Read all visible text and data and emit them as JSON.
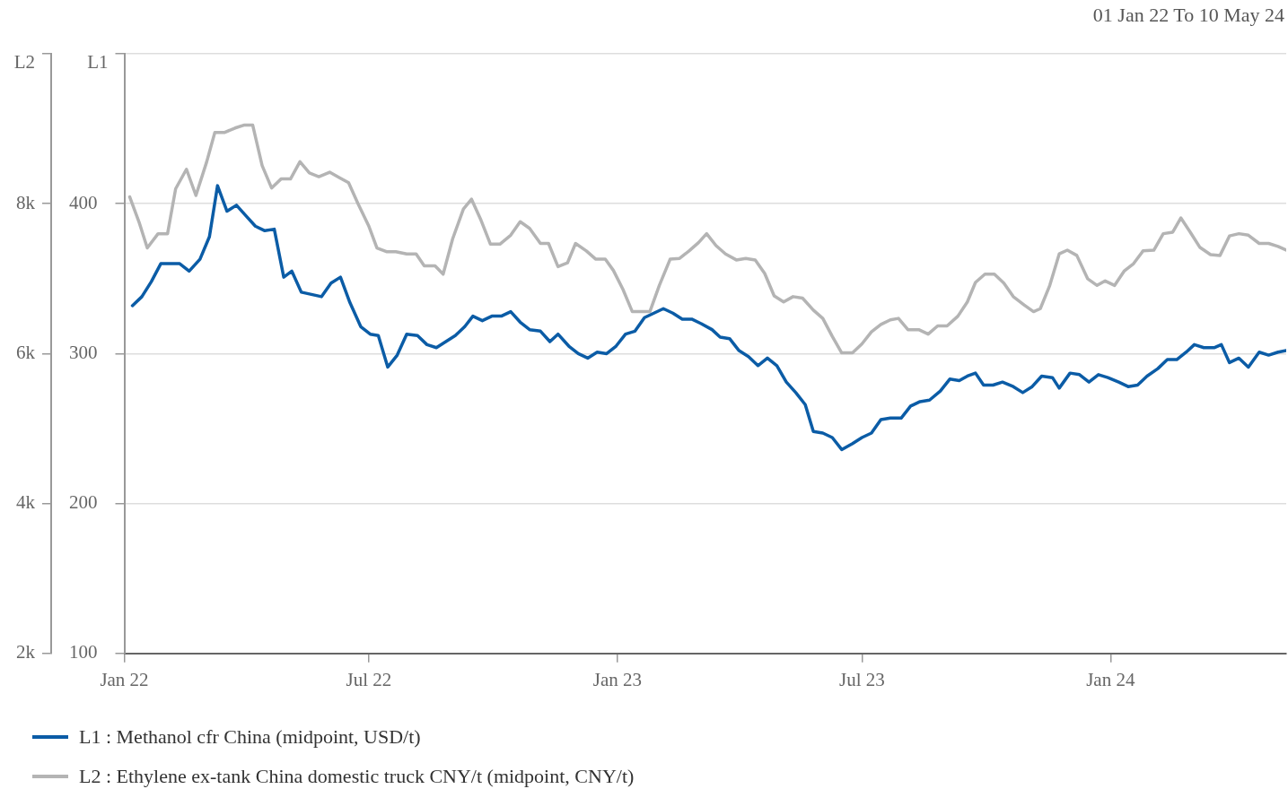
{
  "chart_data": {
    "type": "line",
    "subtitle": "01 Jan 22 To 10 May 24",
    "ylabel": "L1",
    "y2label": "L2",
    "xlim": [
      "2022-01-01",
      "2024-05-10"
    ],
    "xticks": [
      {
        "value": "2022-01-01",
        "label": "Jan 22"
      },
      {
        "value": "2022-07-01",
        "label": "Jul 22"
      },
      {
        "value": "2023-01-01",
        "label": "Jan 23"
      },
      {
        "value": "2023-07-01",
        "label": "Jul 23"
      },
      {
        "value": "2024-01-01",
        "label": "Jan 24"
      }
    ],
    "ylim": [
      100,
      500
    ],
    "yticks": [
      100,
      200,
      300,
      400,
      {
        "value": 500,
        "label": null
      }
    ],
    "y2lim": [
      2000,
      10000
    ],
    "y2ticks": [
      {
        "value": 2000,
        "label": "2k"
      },
      {
        "value": 4000,
        "label": "4k"
      },
      {
        "value": 6000,
        "label": "6k"
      },
      {
        "value": 8000,
        "label": "8k"
      },
      {
        "value": 10000,
        "label": null
      }
    ],
    "grid": "y",
    "legend": "bottom",
    "marker": "none",
    "line_style": "solid",
    "series": [
      {
        "name": "L1 : Methanol cfr China (midpoint, USD/t)",
        "color": "#0b5ca6",
        "x": [
          "2022-01-07",
          "2022-01-14",
          "2022-01-21",
          "2022-01-28",
          "2022-02-11",
          "2022-02-18",
          "2022-02-26",
          "2022-03-05",
          "2022-03-11",
          "2022-03-18",
          "2022-03-25",
          "2022-04-01",
          "2022-04-08",
          "2022-04-15",
          "2022-04-22",
          "2022-04-29",
          "2022-05-05",
          "2022-05-12",
          "2022-05-27",
          "2022-06-03",
          "2022-06-10",
          "2022-06-17",
          "2022-06-25",
          "2022-07-02",
          "2022-07-08",
          "2022-07-15",
          "2022-07-22",
          "2022-07-29",
          "2022-08-06",
          "2022-08-13",
          "2022-08-20",
          "2022-08-27",
          "2022-09-03",
          "2022-09-10",
          "2022-09-16",
          "2022-09-23",
          "2022-09-30",
          "2022-10-07",
          "2022-10-14",
          "2022-10-21",
          "2022-10-28",
          "2022-11-05",
          "2022-11-12",
          "2022-11-18",
          "2022-11-26",
          "2022-12-03",
          "2022-12-10",
          "2022-12-17",
          "2022-12-24",
          "2022-12-31",
          "2023-01-07",
          "2023-01-14",
          "2023-01-21",
          "2023-01-28",
          "2023-02-04",
          "2023-02-11",
          "2023-02-18",
          "2023-02-25",
          "2023-03-04",
          "2023-03-12",
          "2023-03-18",
          "2023-03-25",
          "2023-04-01",
          "2023-04-08",
          "2023-04-15",
          "2023-04-22",
          "2023-04-29",
          "2023-05-06",
          "2023-05-13",
          "2023-05-20",
          "2023-05-26",
          "2023-06-02",
          "2023-06-09",
          "2023-06-16",
          "2023-06-24",
          "2023-07-01",
          "2023-07-08",
          "2023-07-15",
          "2023-07-22",
          "2023-07-30",
          "2023-08-06",
          "2023-08-13",
          "2023-08-20",
          "2023-08-28",
          "2023-09-04",
          "2023-09-11",
          "2023-09-17",
          "2023-09-23",
          "2023-09-29",
          "2023-10-06",
          "2023-10-13",
          "2023-10-21",
          "2023-10-28",
          "2023-11-04",
          "2023-11-11",
          "2023-11-19",
          "2023-11-24",
          "2023-12-02",
          "2023-12-09",
          "2023-12-16",
          "2023-12-23",
          "2023-12-30",
          "2024-01-07",
          "2024-01-14",
          "2024-01-21",
          "2024-01-28",
          "2024-02-05",
          "2024-02-12",
          "2024-02-19",
          "2024-02-26",
          "2024-03-03",
          "2024-03-10",
          "2024-03-18",
          "2024-03-23",
          "2024-03-29",
          "2024-04-05",
          "2024-04-12",
          "2024-04-20",
          "2024-04-27",
          "2024-05-04",
          "2024-05-10"
        ],
        "values": [
          332,
          338,
          348,
          360,
          360,
          355,
          363,
          378,
          412,
          395,
          399,
          392,
          385,
          382,
          383,
          351,
          355,
          341,
          338,
          347,
          351,
          334,
          318,
          313,
          312,
          291,
          299,
          313,
          312,
          306,
          304,
          308,
          312,
          318,
          325,
          322,
          325,
          325,
          328,
          321,
          316,
          315,
          308,
          313,
          305,
          300,
          297,
          301,
          300,
          305,
          313,
          315,
          324,
          327,
          330,
          327,
          323,
          323,
          320,
          316,
          311,
          310,
          302,
          298,
          292,
          297,
          292,
          281,
          274,
          266,
          248,
          247,
          244,
          236,
          240,
          244,
          247,
          256,
          257,
          257,
          265,
          268,
          269,
          275,
          283,
          282,
          285,
          287,
          279,
          279,
          281,
          278,
          274,
          278,
          285,
          284,
          277,
          287,
          286,
          281,
          286,
          284,
          281,
          278,
          279,
          285,
          290,
          296,
          296,
          301,
          306,
          304,
          304,
          306,
          294,
          297,
          291,
          301,
          299,
          301,
          302
        ]
      },
      {
        "name": "L2 : Ethylene ex-tank China domestic truck CNY/t (midpoint, CNY/t)",
        "color": "#b4b4b4",
        "axis": "y2",
        "x": [
          "2022-01-05",
          "2022-01-12",
          "2022-01-18",
          "2022-01-26",
          "2022-02-02",
          "2022-02-08",
          "2022-02-16",
          "2022-02-23",
          "2022-03-03",
          "2022-03-09",
          "2022-03-16",
          "2022-03-24",
          "2022-03-31",
          "2022-04-06",
          "2022-04-13",
          "2022-04-20",
          "2022-04-27",
          "2022-05-04",
          "2022-05-11",
          "2022-05-18",
          "2022-05-25",
          "2022-06-02",
          "2022-06-09",
          "2022-06-16",
          "2022-06-23",
          "2022-07-01",
          "2022-07-07",
          "2022-07-14",
          "2022-07-21",
          "2022-07-29",
          "2022-08-05",
          "2022-08-11",
          "2022-08-19",
          "2022-08-25",
          "2022-09-01",
          "2022-09-09",
          "2022-09-15",
          "2022-09-22",
          "2022-09-29",
          "2022-10-06",
          "2022-10-14",
          "2022-10-21",
          "2022-10-28",
          "2022-11-05",
          "2022-11-11",
          "2022-11-18",
          "2022-11-25",
          "2022-12-01",
          "2022-12-09",
          "2022-12-16",
          "2022-12-23",
          "2022-12-29",
          "2023-01-05",
          "2023-01-12",
          "2023-01-18",
          "2023-01-25",
          "2023-02-01",
          "2023-02-09",
          "2023-02-16",
          "2023-02-23",
          "2023-03-02",
          "2023-03-08",
          "2023-03-15",
          "2023-03-22",
          "2023-03-30",
          "2023-04-06",
          "2023-04-13",
          "2023-04-20",
          "2023-04-27",
          "2023-05-04",
          "2023-05-11",
          "2023-05-18",
          "2023-05-26",
          "2023-06-02",
          "2023-06-09",
          "2023-06-16",
          "2023-06-24",
          "2023-07-01",
          "2023-07-08",
          "2023-07-15",
          "2023-07-22",
          "2023-07-28",
          "2023-08-04",
          "2023-08-12",
          "2023-08-19",
          "2023-08-26",
          "2023-09-02",
          "2023-09-10",
          "2023-09-17",
          "2023-09-23",
          "2023-09-30",
          "2023-10-07",
          "2023-10-14",
          "2023-10-21",
          "2023-10-29",
          "2023-11-05",
          "2023-11-10",
          "2023-11-17",
          "2023-11-24",
          "2023-11-30",
          "2023-12-07",
          "2023-12-15",
          "2023-12-22",
          "2023-12-28",
          "2024-01-04",
          "2024-01-11",
          "2024-01-18",
          "2024-01-25",
          "2024-02-02",
          "2024-02-09",
          "2024-02-16",
          "2024-02-22",
          "2024-02-29",
          "2024-03-07",
          "2024-03-15",
          "2024-03-22",
          "2024-03-29",
          "2024-04-05",
          "2024-04-12",
          "2024-04-20",
          "2024-04-27",
          "2024-05-04",
          "2024-05-10"
        ],
        "values": [
          8090,
          7750,
          7410,
          7600,
          7600,
          8200,
          8460,
          8110,
          8560,
          8950,
          8950,
          9010,
          9050,
          9050,
          8510,
          8210,
          8330,
          8330,
          8560,
          8410,
          8360,
          8420,
          8350,
          8280,
          8000,
          7700,
          7410,
          7360,
          7360,
          7330,
          7330,
          7170,
          7170,
          7060,
          7530,
          7930,
          8060,
          7780,
          7460,
          7460,
          7580,
          7760,
          7670,
          7470,
          7470,
          7160,
          7210,
          7470,
          7370,
          7260,
          7260,
          7110,
          6860,
          6560,
          6560,
          6560,
          6910,
          7260,
          7270,
          7370,
          7480,
          7600,
          7440,
          7330,
          7250,
          7270,
          7250,
          7070,
          6770,
          6690,
          6760,
          6740,
          6580,
          6470,
          6230,
          6010,
          6010,
          6130,
          6290,
          6390,
          6450,
          6470,
          6320,
          6320,
          6260,
          6370,
          6370,
          6500,
          6690,
          6950,
          7060,
          7060,
          6940,
          6760,
          6650,
          6560,
          6600,
          6910,
          7330,
          7380,
          7310,
          7000,
          6910,
          6970,
          6910,
          7100,
          7200,
          7370,
          7380,
          7600,
          7620,
          7810,
          7620,
          7420,
          7320,
          7310,
          7570,
          7600,
          7580,
          7470,
          7470,
          7430,
          7380
        ]
      }
    ]
  }
}
